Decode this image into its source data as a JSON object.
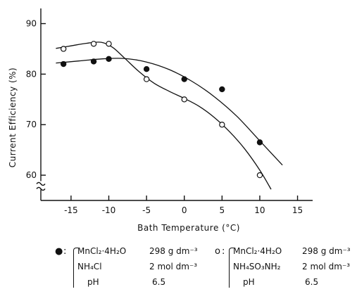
{
  "chart_data": {
    "type": "line",
    "xlabel": "Bath Temperature (°C)",
    "ylabel": "Current Efficiency (%)",
    "xlim": [
      -19,
      17
    ],
    "ylim": [
      55,
      93
    ],
    "y_axis_break": true,
    "x_ticks": [
      -15,
      -10,
      -5,
      0,
      5,
      10,
      15
    ],
    "y_ticks": [
      60,
      70,
      80,
      90
    ],
    "grid": false,
    "series": [
      {
        "marker": "filled-circle",
        "points": [
          [
            -16,
            82
          ],
          [
            -12,
            82.5
          ],
          [
            -10,
            83
          ],
          [
            -5,
            81
          ],
          [
            0,
            79
          ],
          [
            5,
            77
          ],
          [
            10,
            66.5
          ]
        ],
        "fit_curve": [
          [
            -17,
            82.2
          ],
          [
            -14,
            82.6
          ],
          [
            -11,
            83
          ],
          [
            -8,
            83.1
          ],
          [
            -5,
            82.4
          ],
          [
            -2,
            80.9
          ],
          [
            1,
            78.6
          ],
          [
            4,
            75.5
          ],
          [
            7,
            71.6
          ],
          [
            10,
            66.8
          ],
          [
            13,
            62
          ]
        ]
      },
      {
        "marker": "open-circle",
        "points": [
          [
            -16,
            85
          ],
          [
            -12,
            86
          ],
          [
            -10,
            86
          ],
          [
            -5,
            79
          ],
          [
            0,
            75
          ],
          [
            5,
            70
          ],
          [
            10,
            60
          ]
        ],
        "fit_curve": [
          [
            -17,
            85.1
          ],
          [
            -15,
            85.6
          ],
          [
            -13,
            86.1
          ],
          [
            -11,
            86.3
          ],
          [
            -9.5,
            85.3
          ],
          [
            -8,
            83.3
          ],
          [
            -6,
            80.5
          ],
          [
            -4,
            78.2
          ],
          [
            -2,
            76.6
          ],
          [
            0,
            75.2
          ],
          [
            2,
            73.6
          ],
          [
            4,
            71.4
          ],
          [
            6,
            68.6
          ],
          [
            8,
            65.2
          ],
          [
            10,
            61
          ],
          [
            11.5,
            57.2
          ]
        ]
      }
    ]
  },
  "legend": [
    {
      "marker": "●",
      "rows": [
        {
          "label": "MnCl₂·4H₂O",
          "value": "298 g dm⁻³"
        },
        {
          "label": "NH₄Cl",
          "value": "2 mol dm⁻³"
        },
        {
          "label": "pH",
          "value": "6.5"
        }
      ]
    },
    {
      "marker": "o",
      "rows": [
        {
          "label": "MnCl₂·4H₂O",
          "value": "298 g dm⁻³"
        },
        {
          "label": "NH₄SO₃NH₂",
          "value": "2 mol dm⁻³"
        },
        {
          "label": "pH",
          "value": "6.5"
        }
      ]
    }
  ]
}
